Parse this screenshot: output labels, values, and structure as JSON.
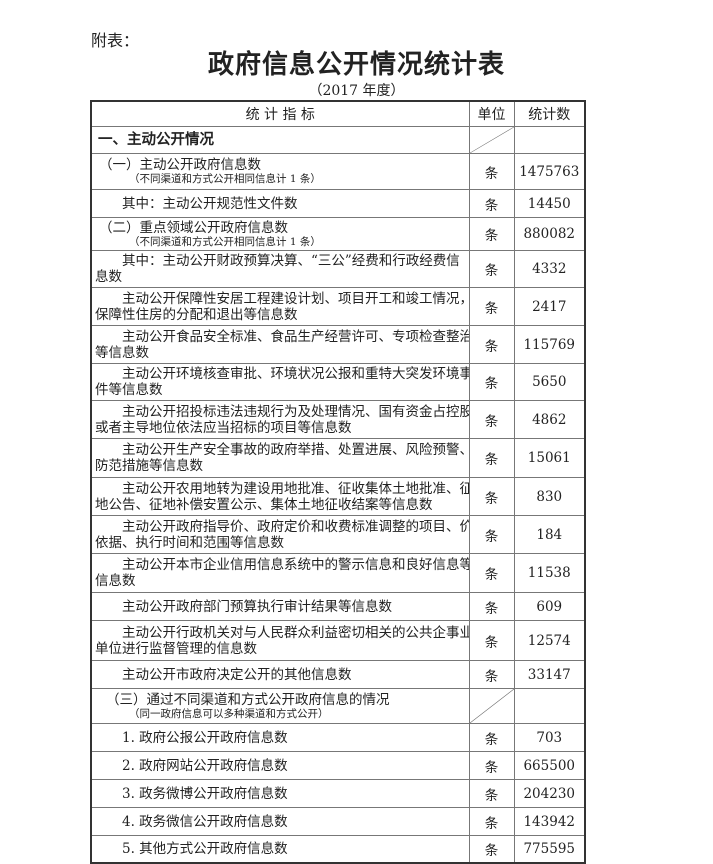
{
  "attachment_label": "附表：",
  "title": "政府信息公开情况统计表",
  "subtitle": "（2017 年度）",
  "table": {
    "headers": [
      "统 计 指 标",
      "单位",
      "统计数"
    ],
    "rows": [
      {
        "type": "section",
        "lines": [
          "一、主动公开情况"
        ],
        "unit": "",
        "value": ""
      },
      {
        "type": "sub",
        "lines": [
          "（一）主动公开政府信息数"
        ],
        "note": "（不同渠道和方式公开相同信息计 1 条）",
        "unit": "条",
        "value": "1475763"
      },
      {
        "type": "item",
        "lines": [
          "其中：主动公开规范性文件数"
        ],
        "unit": "条",
        "value": "14450"
      },
      {
        "type": "sub",
        "lines": [
          "（二）重点领域公开政府信息数"
        ],
        "note": "（不同渠道和方式公开相同信息计 1 条）",
        "unit": "条",
        "value": "880082"
      },
      {
        "type": "item",
        "lines": [
          "其中：主动公开财政预算决算、“三公”经费和行政经费信",
          "息数"
        ],
        "unit": "条",
        "value": "4332"
      },
      {
        "type": "item",
        "lines": [
          "主动公开保障性安居工程建设计划、项目开工和竣工情况，",
          "保障性住房的分配和退出等信息数"
        ],
        "unit": "条",
        "value": "2417"
      },
      {
        "type": "item",
        "lines": [
          "主动公开食品安全标准、食品生产经营许可、专项检查整治",
          "等信息数"
        ],
        "unit": "条",
        "value": "115769"
      },
      {
        "type": "item",
        "lines": [
          "主动公开环境核查审批、环境状况公报和重特大突发环境事",
          "件等信息数"
        ],
        "unit": "条",
        "value": "5650"
      },
      {
        "type": "item",
        "lines": [
          "主动公开招投标违法违规行为及处理情况、国有资金占控股",
          "或者主导地位依法应当招标的项目等信息数"
        ],
        "unit": "条",
        "value": "4862"
      },
      {
        "type": "item",
        "lines": [
          "主动公开生产安全事故的政府举措、处置进展、风险预警、",
          "防范措施等信息数"
        ],
        "unit": "条",
        "value": "15061"
      },
      {
        "type": "item",
        "lines": [
          "主动公开农用地转为建设用地批准、征收集体土地批准、征",
          "地公告、征地补偿安置公示、集体土地征收结案等信息数"
        ],
        "unit": "条",
        "value": "830"
      },
      {
        "type": "item",
        "lines": [
          "主动公开政府指导价、政府定价和收费标准调整的项目、价格、",
          "依据、执行时间和范围等信息数"
        ],
        "unit": "条",
        "value": "184"
      },
      {
        "type": "item",
        "lines": [
          "主动公开本市企业信用信息系统中的警示信息和良好信息等",
          "信息数"
        ],
        "unit": "条",
        "value": "11538"
      },
      {
        "type": "item",
        "lines": [
          "主动公开政府部门预算执行审计结果等信息数"
        ],
        "unit": "条",
        "value": "609"
      },
      {
        "type": "item",
        "lines": [
          "主动公开行政机关对与人民群众利益密切相关的公共企事业",
          "单位进行监督管理的信息数"
        ],
        "unit": "条",
        "value": "12574"
      },
      {
        "type": "item",
        "lines": [
          "主动公开市政府决定公开的其他信息数"
        ],
        "unit": "条",
        "value": "33147"
      },
      {
        "type": "subdiag",
        "lines": [
          "（三）通过不同渠道和方式公开政府信息的情况"
        ],
        "note": "（同一政府信息可以多种渠道和方式公开）",
        "unit": "",
        "value": ""
      },
      {
        "type": "item",
        "lines": [
          "1. 政府公报公开政府信息数"
        ],
        "unit": "条",
        "value": "703"
      },
      {
        "type": "item",
        "lines": [
          "2. 政府网站公开政府信息数"
        ],
        "unit": "条",
        "value": "665500"
      },
      {
        "type": "item",
        "lines": [
          "3. 政务微博公开政府信息数"
        ],
        "unit": "条",
        "value": "204230"
      },
      {
        "type": "item",
        "lines": [
          "4. 政务微信公开政府信息数"
        ],
        "unit": "条",
        "value": "143942"
      },
      {
        "type": "item",
        "lines": [
          "5. 其他方式公开政府信息数"
        ],
        "unit": "条",
        "value": "775595"
      }
    ]
  }
}
